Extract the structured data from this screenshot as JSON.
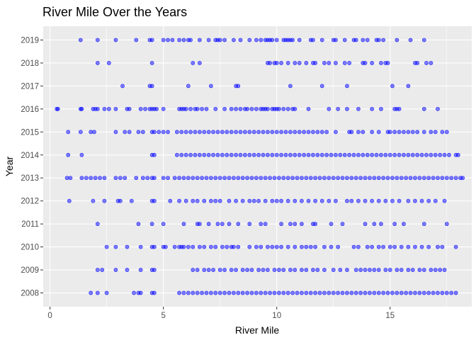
{
  "chart_data": {
    "type": "scatter",
    "title": "River Mile Over the Years",
    "xlabel": "River Mile",
    "ylabel": "Year",
    "xlim": [
      -0.3,
      18.6
    ],
    "x_ticks": [
      0,
      5,
      10,
      15
    ],
    "y_categories": [
      "2008",
      "2009",
      "2010",
      "2011",
      "2012",
      "2013",
      "2014",
      "2015",
      "2016",
      "2017",
      "2018",
      "2019"
    ],
    "grid": true,
    "panel_background": "#ebebeb",
    "point_color": "#0000ff",
    "point_alpha": 0.5,
    "series": [
      {
        "year": "2019",
        "x": [
          1.35,
          2.1,
          2.9,
          3.8,
          4.4,
          4.5,
          5.0,
          5.2,
          5.4,
          5.7,
          5.9,
          6.1,
          6.2,
          6.6,
          7.0,
          7.3,
          7.4,
          7.5,
          7.7,
          8.1,
          8.4,
          8.8,
          9.1,
          9.3,
          9.5,
          9.6,
          9.7,
          9.8,
          10.0,
          10.3,
          10.4,
          10.5,
          10.6,
          10.7,
          11.0,
          11.5,
          11.6,
          12.0,
          12.5,
          12.6,
          13.0,
          13.4,
          13.5,
          13.8,
          14.0,
          14.4,
          14.5,
          14.7,
          15.3,
          15.9,
          16.5
        ]
      },
      {
        "year": "2018",
        "x": [
          2.1,
          2.6,
          4.5,
          6.3,
          6.6,
          9.6,
          9.7,
          9.9,
          10.0,
          10.2,
          10.5,
          10.8,
          11.0,
          11.3,
          11.6,
          11.7,
          12.1,
          12.3,
          12.6,
          13.0,
          13.2,
          13.8,
          13.9,
          14.2,
          14.6,
          14.8,
          14.9,
          16.1,
          16.2,
          16.6,
          16.8
        ]
      },
      {
        "year": "2017",
        "x": [
          3.2,
          4.4,
          4.5,
          6.1,
          7.1,
          8.2,
          8.3,
          10.6,
          12.0,
          13.1,
          15.1,
          15.8
        ]
      },
      {
        "year": "2016",
        "x": [
          0.3,
          0.35,
          1.35,
          1.4,
          1.9,
          2.0,
          2.1,
          2.4,
          2.6,
          2.9,
          3.4,
          3.5,
          4.0,
          4.2,
          4.4,
          4.5,
          4.6,
          4.7,
          5.0,
          5.7,
          5.8,
          5.9,
          6.0,
          6.2,
          6.4,
          6.5,
          6.7,
          6.9,
          7.3,
          7.7,
          8.0,
          8.2,
          8.4,
          8.6,
          8.7,
          8.9,
          9.1,
          9.3,
          9.4,
          9.5,
          9.6,
          9.8,
          9.9,
          10.0,
          10.1,
          10.3,
          10.5,
          10.7,
          10.8,
          11.4,
          12.3,
          12.7,
          13.1,
          13.6,
          14.2,
          14.6,
          15.2,
          15.3,
          15.4,
          16.5,
          17.1
        ]
      },
      {
        "year": "2015",
        "x": [
          0.8,
          1.35,
          1.8,
          1.95,
          2.9,
          3.3,
          3.5,
          3.9,
          4.1,
          4.5,
          4.6,
          4.8,
          5.0,
          5.2,
          5.6,
          5.8,
          6.0,
          6.2,
          6.4,
          6.6,
          6.8,
          7.0,
          7.2,
          7.4,
          7.6,
          7.8,
          8.0,
          8.2,
          8.4,
          8.6,
          8.8,
          9.0,
          9.2,
          9.4,
          9.6,
          9.8,
          10.0,
          10.2,
          10.4,
          10.6,
          10.8,
          11.0,
          11.2,
          11.4,
          11.6,
          11.8,
          12.0,
          12.2,
          12.6,
          13.2,
          13.3,
          13.6,
          13.8,
          14.2,
          14.5,
          14.9,
          15.0,
          15.2,
          15.4,
          15.6,
          15.8,
          16.0,
          16.2,
          16.5,
          16.8,
          17.0,
          17.3,
          17.5
        ]
      },
      {
        "year": "2014",
        "x": [
          0.8,
          1.4,
          4.5,
          4.6,
          5.6,
          5.8,
          6.0,
          6.2,
          6.4,
          6.6,
          6.8,
          7.0,
          7.2,
          7.4,
          7.6,
          7.8,
          8.0,
          8.2,
          8.4,
          8.6,
          8.8,
          9.0,
          9.2,
          9.4,
          9.6,
          9.8,
          10.0,
          10.2,
          10.4,
          10.6,
          10.8,
          11.0,
          11.2,
          11.4,
          11.6,
          11.8,
          12.0,
          12.2,
          12.4,
          12.6,
          12.8,
          13.0,
          13.2,
          13.4,
          13.6,
          13.8,
          14.0,
          14.2,
          14.4,
          14.6,
          14.8,
          15.0,
          15.2,
          15.4,
          15.6,
          15.8,
          16.0,
          16.2,
          16.4,
          16.6,
          16.8,
          17.0,
          17.2,
          17.4,
          17.6,
          17.9,
          18.0
        ]
      },
      {
        "year": "2013",
        "x": [
          0.75,
          0.9,
          1.4,
          1.6,
          1.8,
          2.0,
          2.2,
          2.4,
          2.9,
          3.1,
          3.3,
          3.8,
          4.1,
          4.3,
          4.5,
          4.6,
          5.0,
          5.2,
          5.5,
          5.7,
          5.9,
          6.1,
          6.3,
          6.5,
          6.7,
          6.9,
          7.1,
          7.3,
          7.5,
          7.7,
          7.9,
          8.1,
          8.3,
          8.5,
          8.7,
          8.9,
          9.1,
          9.3,
          9.5,
          9.7,
          9.9,
          10.1,
          10.3,
          10.5,
          10.7,
          10.9,
          11.1,
          11.3,
          11.5,
          11.7,
          11.9,
          12.1,
          12.3,
          12.5,
          12.7,
          12.9,
          13.1,
          13.3,
          13.5,
          13.7,
          13.9,
          14.1,
          14.3,
          14.5,
          14.7,
          14.9,
          15.1,
          15.3,
          15.5,
          15.7,
          15.9,
          16.1,
          16.3,
          16.5,
          16.7,
          16.9,
          17.1,
          17.3,
          17.5,
          17.7,
          17.9,
          18.1,
          18.2
        ]
      },
      {
        "year": "2012",
        "x": [
          0.85,
          1.9,
          2.4,
          3.0,
          3.1,
          3.6,
          4.5,
          4.6,
          5.3,
          5.7,
          6.0,
          6.3,
          6.5,
          6.8,
          7.1,
          7.3,
          7.5,
          7.9,
          8.2,
          8.5,
          8.8,
          9.0,
          9.2,
          9.5,
          9.8,
          10.0,
          10.2,
          10.5,
          10.8,
          11.1,
          11.4,
          11.7,
          12.0,
          12.3,
          12.6,
          13.1,
          13.3,
          13.6,
          13.9,
          14.2,
          14.5,
          14.8,
          15.1,
          15.4,
          15.8,
          16.1,
          16.4,
          16.7,
          17.0,
          17.4
        ]
      },
      {
        "year": "2011",
        "x": [
          2.1,
          3.9,
          4.5,
          5.0,
          5.9,
          6.5,
          6.6,
          7.0,
          7.4,
          7.6,
          7.9,
          8.3,
          8.8,
          9.3,
          9.5,
          10.2,
          10.6,
          10.8,
          11.1,
          11.6,
          11.7,
          12.4,
          12.9,
          13.9,
          14.3,
          14.6,
          15.2,
          15.6,
          16.5,
          17.5
        ]
      },
      {
        "year": "2010",
        "x": [
          2.5,
          2.9,
          3.4,
          4.0,
          4.5,
          4.6,
          5.0,
          5.1,
          5.5,
          5.7,
          5.8,
          5.9,
          6.1,
          6.3,
          6.6,
          6.8,
          7.1,
          7.3,
          7.6,
          7.8,
          8.0,
          8.1,
          8.3,
          8.8,
          9.1,
          9.3,
          9.6,
          9.8,
          10.0,
          10.2,
          10.5,
          10.8,
          11.1,
          11.3,
          11.5,
          11.7,
          12.1,
          12.4,
          12.7,
          13.4,
          13.6,
          14.0,
          14.2,
          14.5,
          14.7,
          15.0,
          15.2,
          15.5,
          15.8,
          16.1,
          16.4,
          16.7,
          17.1,
          17.3,
          17.9
        ]
      },
      {
        "year": "2009",
        "x": [
          2.1,
          2.3,
          2.9,
          3.4,
          4.0,
          4.5,
          4.6,
          6.3,
          6.5,
          6.8,
          7.0,
          7.2,
          7.5,
          7.7,
          8.0,
          8.2,
          8.5,
          8.7,
          8.9,
          9.2,
          9.4,
          9.6,
          9.9,
          10.1,
          10.3,
          10.6,
          10.8,
          11.1,
          11.3,
          11.6,
          11.8,
          12.1,
          12.5,
          12.8,
          13.1,
          13.5,
          13.7,
          13.9,
          14.1,
          14.3,
          14.5,
          14.8,
          15.0,
          15.3,
          15.5,
          15.8,
          16.0,
          16.3,
          16.5,
          16.8,
          17.0,
          17.2,
          17.4
        ]
      },
      {
        "year": "2008",
        "x": [
          1.8,
          2.1,
          2.5,
          3.7,
          3.9,
          4.0,
          4.5,
          4.6,
          5.7,
          5.9,
          6.1,
          6.3,
          6.5,
          6.7,
          6.9,
          7.1,
          7.3,
          7.5,
          7.7,
          7.9,
          8.1,
          8.3,
          8.5,
          8.7,
          8.9,
          9.1,
          9.3,
          9.5,
          9.7,
          9.9,
          10.1,
          10.3,
          10.5,
          10.7,
          10.9,
          11.1,
          11.3,
          11.5,
          11.7,
          11.9,
          12.1,
          12.3,
          12.5,
          12.7,
          12.9,
          13.1,
          13.3,
          13.5,
          13.7,
          13.9,
          14.1,
          14.3,
          14.5,
          14.7,
          14.9,
          15.1,
          15.3,
          15.5,
          15.7,
          15.9,
          16.1,
          16.3,
          16.5,
          16.7,
          16.9,
          17.1,
          17.3,
          17.5,
          17.7,
          17.9
        ]
      }
    ]
  }
}
